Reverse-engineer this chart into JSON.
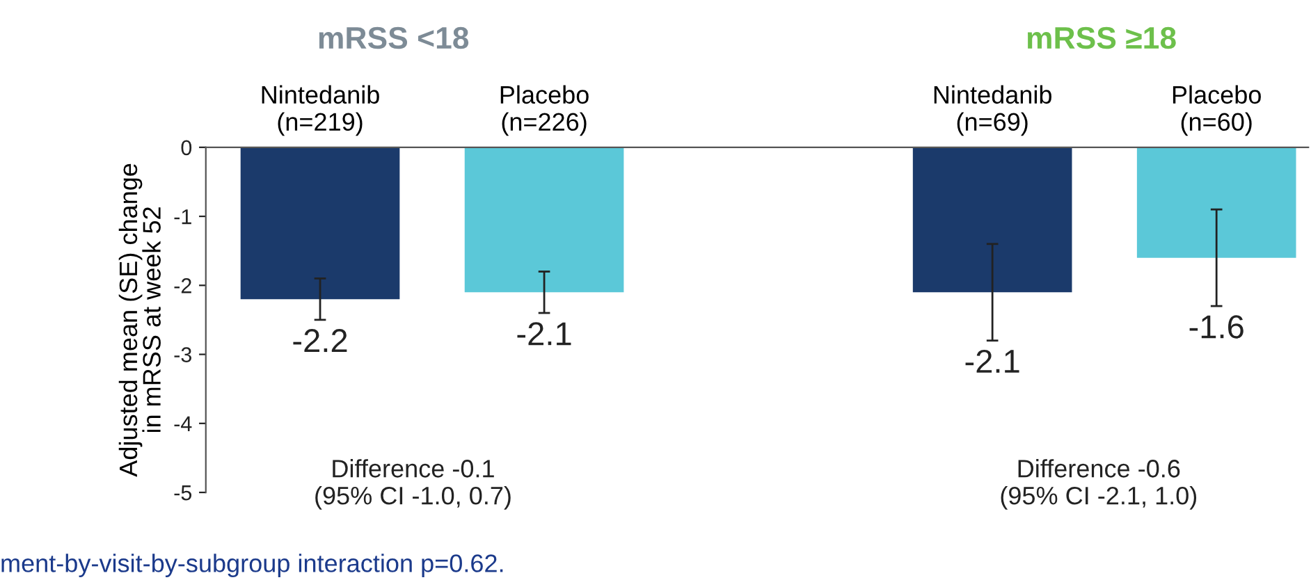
{
  "chart_data": {
    "type": "bar",
    "ylabel": "Adjusted mean (SE) change\nin mRSS at week 52",
    "categories": [
      "Nintedanib\n(n=219)",
      "Placebo\n(n=226)",
      null,
      "Nintedanib\n(n=69)",
      "Placebo\n(n=60)"
    ],
    "values": [
      -2.2,
      -2.1,
      null,
      -2.1,
      -1.6
    ],
    "errors": [
      0.3,
      0.3,
      null,
      0.7,
      0.7
    ],
    "colors": [
      "#1b3a6b",
      "#5bc8d8",
      null,
      "#1b3a6b",
      "#5bc8d8"
    ],
    "ylim": [
      -5,
      0
    ],
    "yticks": [
      0,
      -1,
      -2,
      -3,
      -4,
      -5
    ],
    "grid": false,
    "legend": false,
    "data_labels": true,
    "annotations": [
      "mRSS <18",
      "mRSS ≥18",
      "Difference -0.1\n(95% CI -1.0, 0.7)",
      "Difference -0.6\n(95% CI -2.1, 1.0)",
      "ment-by-visit-by-subgroup interaction p=0.62."
    ]
  }
}
